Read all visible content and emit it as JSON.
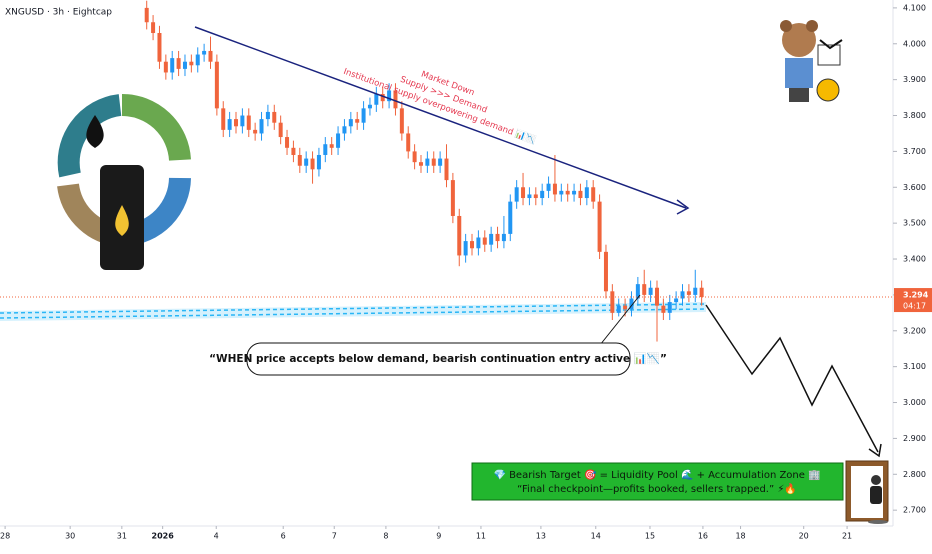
{
  "chart_data": {
    "type": "candlestick",
    "title": "XNGUSD · 3h · Eightcap",
    "up_color": "#2196f3",
    "down_color": "#f0643c",
    "xlim": [
      0,
      140
    ],
    "ylim": [
      2.667,
      4.122
    ],
    "xticks": [
      {
        "value": 0.8,
        "label": "28"
      },
      {
        "value": 11,
        "label": "30"
      },
      {
        "value": 19.1,
        "label": "31"
      },
      {
        "value": 25.5,
        "label": "2026"
      },
      {
        "value": 33.9,
        "label": "4"
      },
      {
        "value": 44.4,
        "label": "6"
      },
      {
        "value": 52.4,
        "label": "7"
      },
      {
        "value": 60.5,
        "label": "8"
      },
      {
        "value": 68.8,
        "label": "9"
      },
      {
        "value": 75.4,
        "label": "11"
      },
      {
        "value": 84.8,
        "label": "13"
      },
      {
        "value": 93.4,
        "label": "14"
      },
      {
        "value": 101.9,
        "label": "15"
      },
      {
        "value": 110.2,
        "label": "16"
      },
      {
        "value": 116.1,
        "label": "18"
      },
      {
        "value": 126,
        "label": "20"
      },
      {
        "value": 132.8,
        "label": "21"
      }
    ],
    "yticks": [
      {
        "value": 4.1,
        "label": "4.100"
      },
      {
        "value": 4.0,
        "label": "4.000"
      },
      {
        "value": 3.9,
        "label": "3.900"
      },
      {
        "value": 3.8,
        "label": "3.800"
      },
      {
        "value": 3.7,
        "label": "3.700"
      },
      {
        "value": 3.6,
        "label": "3.600"
      },
      {
        "value": 3.5,
        "label": "3.500"
      },
      {
        "value": 3.4,
        "label": "3.400"
      },
      {
        "value": 3.3,
        "label": "3.300"
      },
      {
        "value": 3.2,
        "label": "3.200"
      },
      {
        "value": 3.1,
        "label": "3.100"
      },
      {
        "value": 3.0,
        "label": "3.000"
      },
      {
        "value": 2.9,
        "label": "2.900"
      },
      {
        "value": 2.8,
        "label": "2.800"
      },
      {
        "value": 2.7,
        "label": "2.700"
      }
    ],
    "x": [
      23,
      24,
      25,
      26,
      27,
      28,
      29,
      30,
      31,
      32,
      33,
      34,
      35,
      36,
      37,
      38,
      39,
      40,
      41,
      42,
      43,
      44,
      45,
      46,
      47,
      48,
      49,
      50,
      51,
      52,
      53,
      54,
      55,
      56,
      57,
      58,
      59,
      60,
      61,
      62,
      63,
      64,
      65,
      66,
      67,
      68,
      69,
      70,
      71,
      72,
      73,
      74,
      75,
      76,
      77,
      78,
      79,
      80,
      81,
      82,
      83,
      84,
      85,
      86,
      87,
      88,
      89,
      90,
      91,
      92,
      93,
      94,
      95,
      96,
      97,
      98,
      99,
      100,
      101,
      102,
      103,
      104,
      105,
      106,
      107,
      108,
      109,
      110
    ],
    "open": [
      4.1,
      4.06,
      4.03,
      3.95,
      3.92,
      3.96,
      3.93,
      3.95,
      3.94,
      3.97,
      3.98,
      3.95,
      3.82,
      3.76,
      3.79,
      3.77,
      3.8,
      3.76,
      3.75,
      3.79,
      3.81,
      3.78,
      3.74,
      3.71,
      3.69,
      3.66,
      3.68,
      3.65,
      3.69,
      3.72,
      3.71,
      3.75,
      3.77,
      3.79,
      3.78,
      3.82,
      3.83,
      3.86,
      3.84,
      3.87,
      3.82,
      3.75,
      3.7,
      3.67,
      3.66,
      3.68,
      3.66,
      3.68,
      3.62,
      3.52,
      3.41,
      3.45,
      3.43,
      3.46,
      3.44,
      3.47,
      3.45,
      3.47,
      3.56,
      3.6,
      3.57,
      3.58,
      3.57,
      3.59,
      3.61,
      3.58,
      3.59,
      3.58,
      3.59,
      3.57,
      3.6,
      3.56,
      3.42,
      3.31,
      3.25,
      3.27,
      3.26,
      3.29,
      3.33,
      3.3,
      3.32,
      3.27,
      3.25,
      3.28,
      3.29,
      3.31,
      3.3,
      3.32
    ],
    "high": [
      4.12,
      4.08,
      4.05,
      3.97,
      3.98,
      3.98,
      3.97,
      3.97,
      3.99,
      4.0,
      4.02,
      3.97,
      3.84,
      3.81,
      3.81,
      3.82,
      3.82,
      3.78,
      3.81,
      3.83,
      3.83,
      3.8,
      3.76,
      3.73,
      3.71,
      3.7,
      3.7,
      3.71,
      3.74,
      3.74,
      3.77,
      3.79,
      3.81,
      3.81,
      3.84,
      3.85,
      3.88,
      3.88,
      3.89,
      3.89,
      3.84,
      3.77,
      3.72,
      3.69,
      3.7,
      3.7,
      3.7,
      3.72,
      3.64,
      3.54,
      3.47,
      3.47,
      3.48,
      3.48,
      3.49,
      3.49,
      3.52,
      3.58,
      3.62,
      3.64,
      3.6,
      3.6,
      3.61,
      3.63,
      3.69,
      3.61,
      3.61,
      3.61,
      3.61,
      3.62,
      3.62,
      3.58,
      3.44,
      3.33,
      3.29,
      3.29,
      3.31,
      3.35,
      3.37,
      3.34,
      3.34,
      3.29,
      3.3,
      3.31,
      3.33,
      3.33,
      3.37,
      3.34
    ],
    "low": [
      4.04,
      4.01,
      3.93,
      3.9,
      3.9,
      3.91,
      3.91,
      3.92,
      3.92,
      3.95,
      3.93,
      3.8,
      3.74,
      3.74,
      3.75,
      3.75,
      3.74,
      3.73,
      3.73,
      3.77,
      3.76,
      3.72,
      3.69,
      3.67,
      3.64,
      3.64,
      3.61,
      3.63,
      3.67,
      3.69,
      3.69,
      3.73,
      3.75,
      3.76,
      3.76,
      3.8,
      3.81,
      3.82,
      3.82,
      3.8,
      3.73,
      3.68,
      3.65,
      3.64,
      3.64,
      3.64,
      3.64,
      3.6,
      3.5,
      3.38,
      3.39,
      3.41,
      3.41,
      3.42,
      3.42,
      3.43,
      3.43,
      3.45,
      3.54,
      3.55,
      3.55,
      3.55,
      3.55,
      3.57,
      3.56,
      3.56,
      3.56,
      3.56,
      3.55,
      3.55,
      3.54,
      3.4,
      3.29,
      3.23,
      3.24,
      3.24,
      3.24,
      3.27,
      3.28,
      3.28,
      3.17,
      3.23,
      3.23,
      3.26,
      3.27,
      3.28,
      3.28,
      3.27
    ],
    "close": [
      4.06,
      4.03,
      3.95,
      3.92,
      3.96,
      3.93,
      3.95,
      3.94,
      3.97,
      3.98,
      3.95,
      3.82,
      3.76,
      3.79,
      3.77,
      3.8,
      3.76,
      3.75,
      3.79,
      3.81,
      3.78,
      3.74,
      3.71,
      3.69,
      3.66,
      3.68,
      3.65,
      3.69,
      3.72,
      3.71,
      3.75,
      3.77,
      3.79,
      3.78,
      3.82,
      3.83,
      3.86,
      3.84,
      3.87,
      3.82,
      3.75,
      3.7,
      3.67,
      3.66,
      3.68,
      3.66,
      3.68,
      3.62,
      3.52,
      3.41,
      3.45,
      3.43,
      3.46,
      3.44,
      3.47,
      3.45,
      3.47,
      3.56,
      3.6,
      3.57,
      3.58,
      3.57,
      3.59,
      3.61,
      3.58,
      3.59,
      3.58,
      3.59,
      3.57,
      3.6,
      3.56,
      3.42,
      3.31,
      3.25,
      3.27,
      3.26,
      3.29,
      3.33,
      3.3,
      3.32,
      3.27,
      3.25,
      3.28,
      3.29,
      3.31,
      3.3,
      3.32,
      3.294
    ],
    "countdown": "04:17",
    "annotations": {
      "trend_1": "Market Down",
      "trend_2": "Supply >>> Demand",
      "trend_3": "Institutional supply overpowering demand 📊📉",
      "callout": "“WHEN price accepts below demand, bearish continuation entry active 📊📉”",
      "target_1": "💎 Bearish Target 🎯 = Liquidity Pool 🌊 + Accumulation Zone 🏢",
      "target_2": "“Final checkpoint—profits booked, sellers trapped.” ⚡🔥"
    }
  }
}
